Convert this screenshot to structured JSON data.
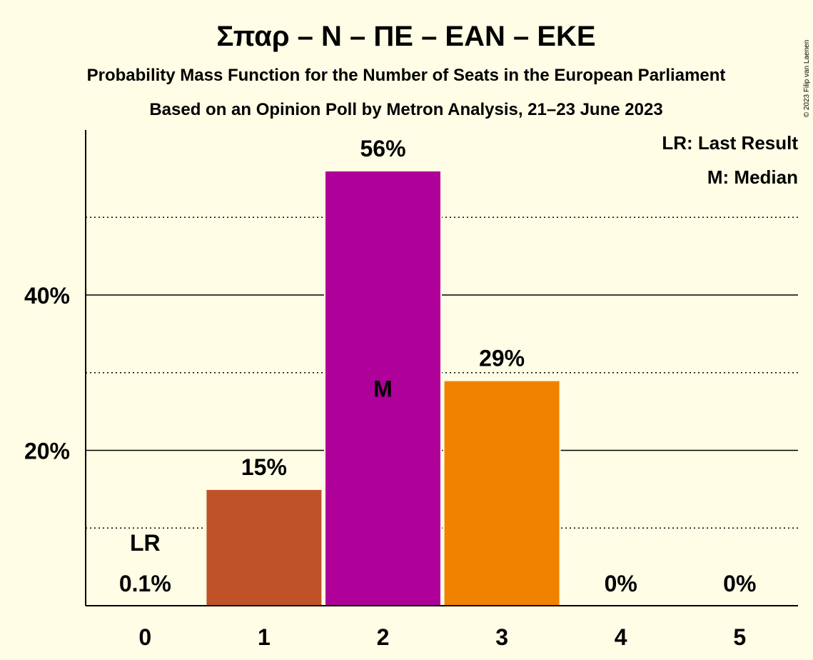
{
  "chart_data": {
    "type": "bar",
    "title": "Σπαρ – Ν – ΠΕ – ΕΑΝ – ΕΚΕ",
    "subtitle": "Probability Mass Function for the Number of Seats in the European Parliament",
    "subtitle2": "Based on an Opinion Poll by Metron Analysis, 21–23 June 2023",
    "copyright": "© 2023 Filip van Laenen",
    "categories": [
      "0",
      "1",
      "2",
      "3",
      "4",
      "5"
    ],
    "values": [
      0.1,
      15,
      56,
      29,
      0,
      0
    ],
    "value_labels": [
      "0.1%",
      "15%",
      "56%",
      "29%",
      "0%",
      "0%"
    ],
    "bar_colors": [
      "#C0522A",
      "#C0522A",
      "#B0009A",
      "#F08200",
      "#F08200",
      "#F08200"
    ],
    "ylim": [
      0,
      61
    ],
    "y_major_ticks": [
      20,
      40
    ],
    "y_major_tick_labels": [
      "20%",
      "40%"
    ],
    "y_minor_gridlines": [
      10,
      30,
      50
    ],
    "last_result_index": 0,
    "last_result_label": "LR",
    "median_index": 2,
    "median_label": "M",
    "legend": [
      "LR: Last Result",
      "M: Median"
    ],
    "legend_position": "top-right"
  }
}
